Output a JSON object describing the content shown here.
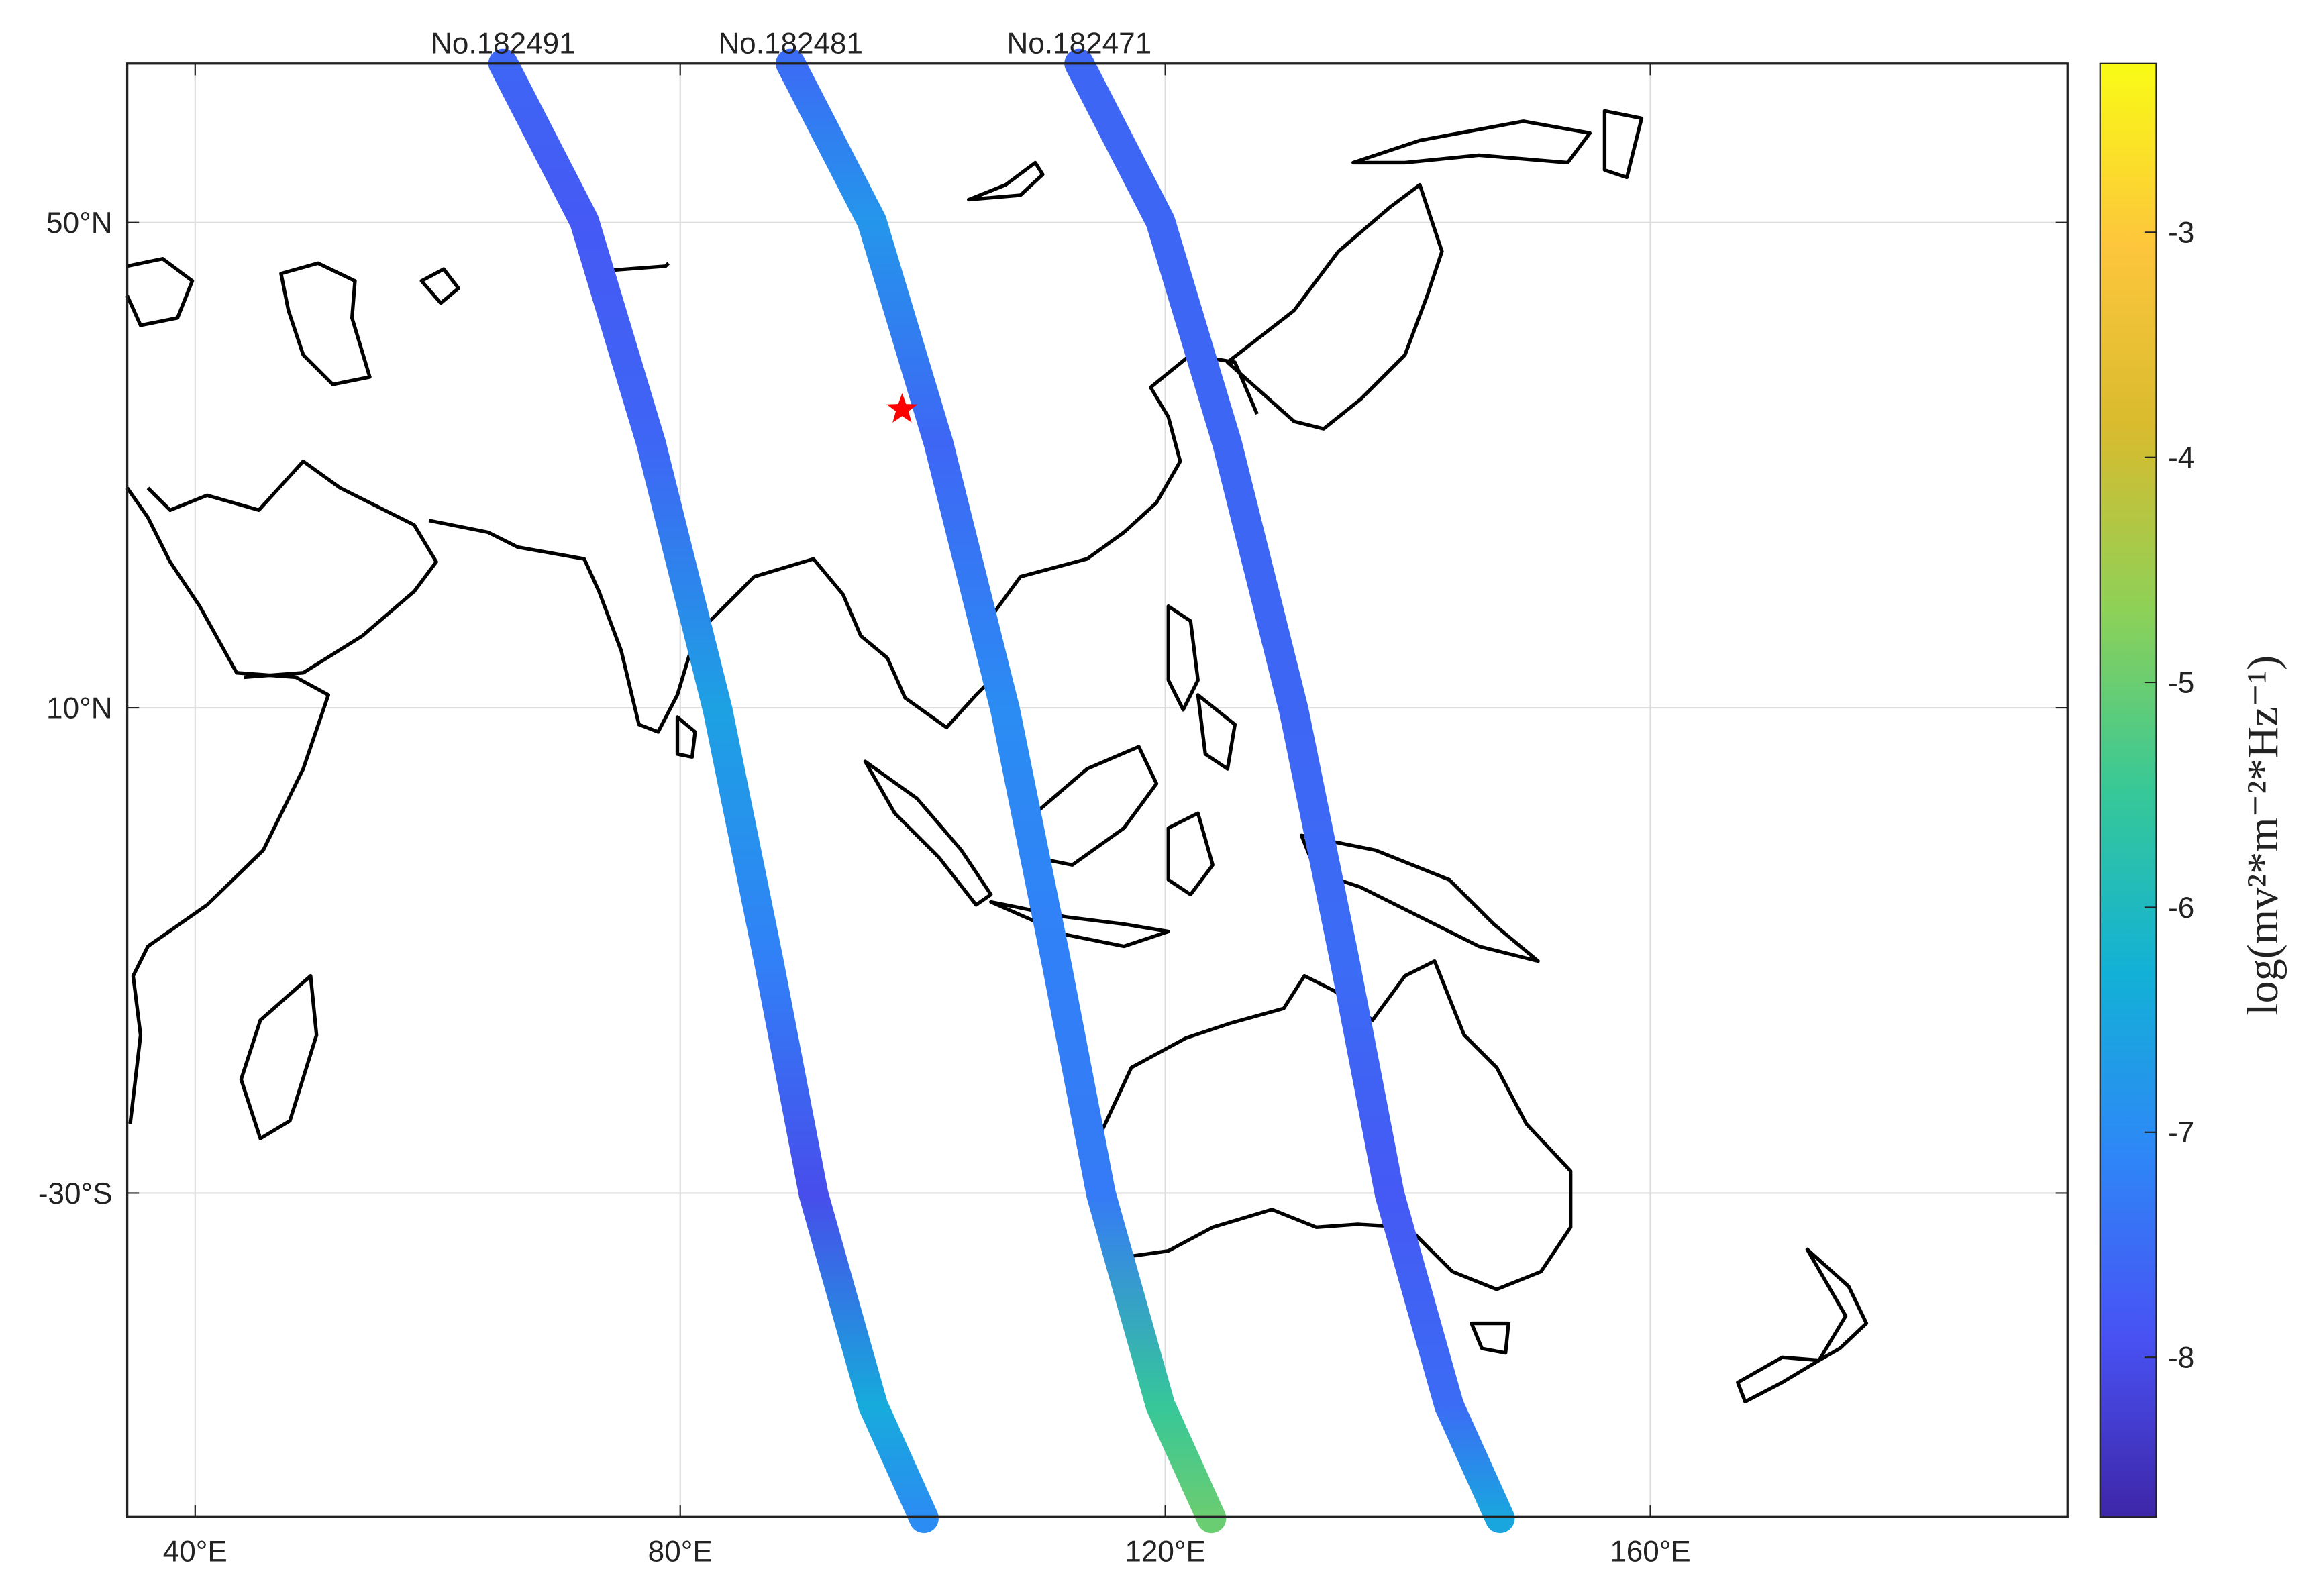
{
  "chart_data": {
    "type": "map-track",
    "xlim": [
      34.4,
      194.4
    ],
    "ylim": [
      -56.7,
      63.1
    ],
    "xticks": [
      {
        "value": 40,
        "label": "40°E"
      },
      {
        "value": 80,
        "label": "80°E"
      },
      {
        "value": 120,
        "label": "120°E"
      },
      {
        "value": 160,
        "label": "160°E"
      }
    ],
    "yticks": [
      {
        "value": 50,
        "label": "50°N"
      },
      {
        "value": 10,
        "label": "10°N"
      },
      {
        "value": -30,
        "label": "-30°S"
      }
    ],
    "grid": true,
    "colormap": "parula",
    "clim": [
      -8.71,
      -2.25
    ],
    "cticks": [
      -3,
      -4,
      -5,
      -6,
      -7,
      -8
    ],
    "colorbar_label": "log(mv²*m⁻²*Hz⁻¹)",
    "series": [
      {
        "name": "No.182491",
        "lon": [
          65.4,
          72.1,
          77.6,
          83.1,
          87.3,
          91.0,
          95.9,
          100.1
        ],
        "lat": [
          63.1,
          50.1,
          31.8,
          9.8,
          -10.9,
          -30.1,
          -47.5,
          -56.8
        ],
        "values": [
          -7.6,
          -7.8,
          -7.6,
          -6.6,
          -7.2,
          -8.0,
          -6.4,
          -7.0
        ]
      },
      {
        "name": "No.182481",
        "lon": [
          89.1,
          95.8,
          101.3,
          106.8,
          111.0,
          114.7,
          119.6,
          123.8
        ],
        "lat": [
          63.1,
          50.1,
          31.8,
          9.8,
          -10.9,
          -30.1,
          -47.5,
          -56.8
        ],
        "values": [
          -7.5,
          -6.8,
          -7.6,
          -7.0,
          -7.2,
          -7.3,
          -5.5,
          -5.0
        ]
      },
      {
        "name": "No.182471",
        "lon": [
          112.9,
          119.6,
          125.1,
          130.6,
          134.8,
          138.5,
          143.4,
          147.6
        ],
        "lat": [
          63.1,
          50.1,
          31.8,
          9.8,
          -10.9,
          -30.1,
          -47.5,
          -56.8
        ],
        "values": [
          -7.6,
          -7.6,
          -7.6,
          -7.6,
          -7.5,
          -7.8,
          -7.5,
          -6.5
        ]
      }
    ],
    "marker": {
      "lon": 98.3,
      "lat": 34.6,
      "color": "#ff0000"
    }
  }
}
